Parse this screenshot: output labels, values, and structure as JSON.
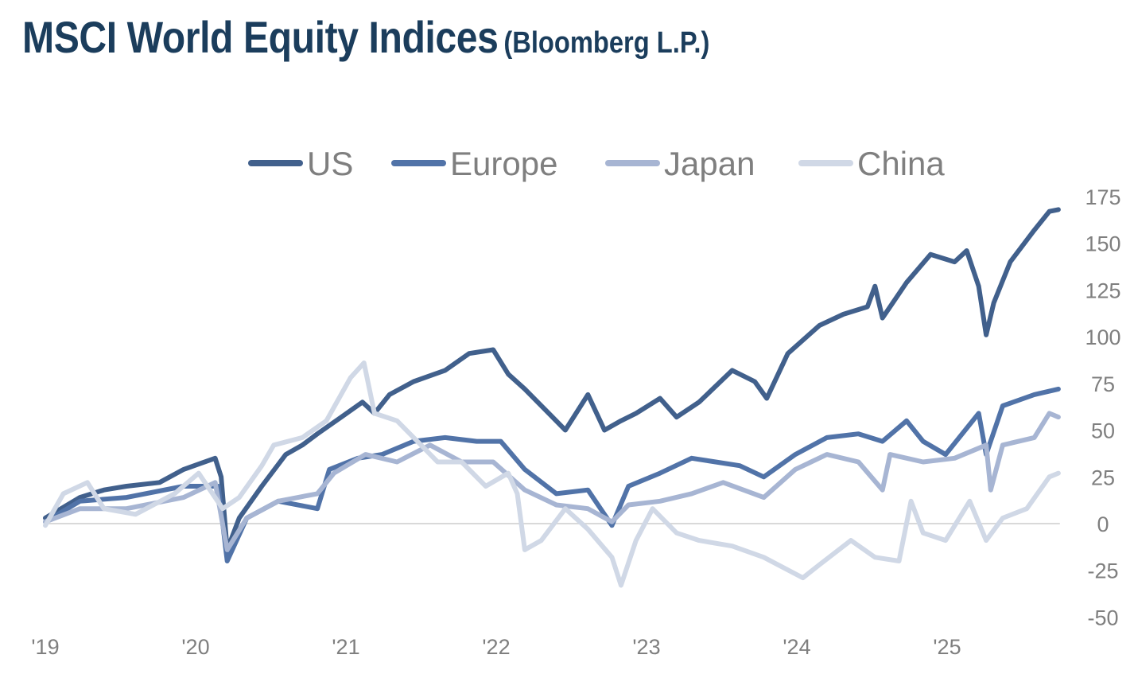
{
  "title": {
    "main": "MSCI World Equity Indices",
    "sub": "(Bloomberg L.P.)"
  },
  "colors": {
    "title": "#1b3d5c",
    "zero_line": "#d9d9d9",
    "text": "#7f7f7f"
  },
  "chart_data": {
    "type": "line",
    "title": "MSCI World Equity Indices (Bloomberg L.P.)",
    "xlabel": "",
    "ylabel": "",
    "xlim": [
      2019,
      2025.75
    ],
    "ylim": [
      -50,
      175
    ],
    "y_ticks": [
      175,
      150,
      125,
      100,
      75,
      50,
      25,
      0,
      -25,
      -50
    ],
    "y_tick_labels": [
      "175",
      "150",
      "125",
      "100",
      "75",
      "50",
      "25",
      "0",
      "-25",
      "-50"
    ],
    "y_axis_side": "right",
    "x_ticks": [
      2019,
      2020,
      2021,
      2022,
      2023,
      2024,
      2025
    ],
    "x_tick_labels": [
      "'19",
      "'20",
      "'21",
      "'22",
      "'23",
      "'24",
      "'25"
    ],
    "grid": false,
    "zero_line": true,
    "legend_position": "top",
    "series": [
      {
        "name": "US",
        "color": "#41608c",
        "points": [
          [
            2019.0,
            3
          ],
          [
            2019.23,
            14
          ],
          [
            2019.39,
            18
          ],
          [
            2019.54,
            20
          ],
          [
            2019.76,
            22
          ],
          [
            2019.92,
            29
          ],
          [
            2020.13,
            35
          ],
          [
            2020.17,
            25
          ],
          [
            2020.21,
            -14
          ],
          [
            2020.29,
            3
          ],
          [
            2020.44,
            20
          ],
          [
            2020.6,
            37
          ],
          [
            2020.71,
            42
          ],
          [
            2020.81,
            48
          ],
          [
            2020.97,
            57
          ],
          [
            2021.11,
            65
          ],
          [
            2021.19,
            59
          ],
          [
            2021.29,
            69
          ],
          [
            2021.45,
            76
          ],
          [
            2021.66,
            82
          ],
          [
            2021.82,
            91
          ],
          [
            2021.98,
            93
          ],
          [
            2022.08,
            80
          ],
          [
            2022.19,
            72
          ],
          [
            2022.35,
            59
          ],
          [
            2022.46,
            50
          ],
          [
            2022.61,
            69
          ],
          [
            2022.72,
            50
          ],
          [
            2022.83,
            55
          ],
          [
            2022.93,
            59
          ],
          [
            2023.09,
            67
          ],
          [
            2023.2,
            57
          ],
          [
            2023.35,
            65
          ],
          [
            2023.57,
            82
          ],
          [
            2023.72,
            76
          ],
          [
            2023.8,
            67
          ],
          [
            2023.94,
            91
          ],
          [
            2024.15,
            106
          ],
          [
            2024.31,
            112
          ],
          [
            2024.47,
            116
          ],
          [
            2024.52,
            127
          ],
          [
            2024.57,
            110
          ],
          [
            2024.73,
            129
          ],
          [
            2024.89,
            144
          ],
          [
            2025.05,
            140
          ],
          [
            2025.13,
            146
          ],
          [
            2025.21,
            127
          ],
          [
            2025.26,
            101
          ],
          [
            2025.31,
            118
          ],
          [
            2025.42,
            140
          ],
          [
            2025.58,
            157
          ],
          [
            2025.68,
            167
          ],
          [
            2025.74,
            168
          ]
        ]
      },
      {
        "name": "Europe",
        "color": "#5173a8",
        "points": [
          [
            2019.0,
            1
          ],
          [
            2019.23,
            12
          ],
          [
            2019.54,
            14
          ],
          [
            2019.92,
            20
          ],
          [
            2020.15,
            20
          ],
          [
            2020.21,
            -20
          ],
          [
            2020.34,
            3
          ],
          [
            2020.55,
            12
          ],
          [
            2020.81,
            8
          ],
          [
            2020.89,
            29
          ],
          [
            2021.08,
            35
          ],
          [
            2021.24,
            37
          ],
          [
            2021.45,
            44
          ],
          [
            2021.66,
            46
          ],
          [
            2021.87,
            44
          ],
          [
            2022.03,
            44
          ],
          [
            2022.19,
            29
          ],
          [
            2022.4,
            16
          ],
          [
            2022.61,
            18
          ],
          [
            2022.77,
            -1
          ],
          [
            2022.88,
            20
          ],
          [
            2023.09,
            27
          ],
          [
            2023.3,
            35
          ],
          [
            2023.46,
            33
          ],
          [
            2023.62,
            31
          ],
          [
            2023.78,
            25
          ],
          [
            2023.99,
            37
          ],
          [
            2024.2,
            46
          ],
          [
            2024.41,
            48
          ],
          [
            2024.57,
            44
          ],
          [
            2024.73,
            55
          ],
          [
            2024.84,
            44
          ],
          [
            2024.99,
            37
          ],
          [
            2025.21,
            59
          ],
          [
            2025.26,
            37
          ],
          [
            2025.37,
            63
          ],
          [
            2025.58,
            69
          ],
          [
            2025.74,
            72
          ]
        ]
      },
      {
        "name": "Japan",
        "color": "#a7b5d3",
        "points": [
          [
            2019.0,
            1
          ],
          [
            2019.23,
            8
          ],
          [
            2019.54,
            8
          ],
          [
            2019.92,
            14
          ],
          [
            2020.13,
            22
          ],
          [
            2020.21,
            -14
          ],
          [
            2020.34,
            3
          ],
          [
            2020.55,
            12
          ],
          [
            2020.81,
            16
          ],
          [
            2020.92,
            27
          ],
          [
            2021.13,
            37
          ],
          [
            2021.34,
            33
          ],
          [
            2021.56,
            42
          ],
          [
            2021.77,
            33
          ],
          [
            2021.98,
            33
          ],
          [
            2022.19,
            18
          ],
          [
            2022.4,
            10
          ],
          [
            2022.61,
            8
          ],
          [
            2022.77,
            1
          ],
          [
            2022.88,
            10
          ],
          [
            2023.09,
            12
          ],
          [
            2023.3,
            16
          ],
          [
            2023.51,
            22
          ],
          [
            2023.78,
            14
          ],
          [
            2023.99,
            29
          ],
          [
            2024.2,
            37
          ],
          [
            2024.41,
            33
          ],
          [
            2024.57,
            18
          ],
          [
            2024.62,
            37
          ],
          [
            2024.84,
            33
          ],
          [
            2025.05,
            35
          ],
          [
            2025.26,
            42
          ],
          [
            2025.29,
            18
          ],
          [
            2025.37,
            42
          ],
          [
            2025.58,
            46
          ],
          [
            2025.68,
            59
          ],
          [
            2025.74,
            57
          ]
        ]
      },
      {
        "name": "China",
        "color": "#d0d8e6",
        "points": [
          [
            2019.0,
            -1
          ],
          [
            2019.12,
            16
          ],
          [
            2019.28,
            22
          ],
          [
            2019.39,
            8
          ],
          [
            2019.6,
            5
          ],
          [
            2019.86,
            16
          ],
          [
            2020.02,
            27
          ],
          [
            2020.18,
            8
          ],
          [
            2020.29,
            14
          ],
          [
            2020.44,
            31
          ],
          [
            2020.52,
            42
          ],
          [
            2020.71,
            46
          ],
          [
            2020.87,
            55
          ],
          [
            2021.03,
            78
          ],
          [
            2021.12,
            86
          ],
          [
            2021.19,
            59
          ],
          [
            2021.34,
            55
          ],
          [
            2021.5,
            42
          ],
          [
            2021.61,
            33
          ],
          [
            2021.77,
            33
          ],
          [
            2021.93,
            20
          ],
          [
            2022.08,
            27
          ],
          [
            2022.14,
            16
          ],
          [
            2022.19,
            -14
          ],
          [
            2022.3,
            -9
          ],
          [
            2022.46,
            8
          ],
          [
            2022.61,
            -3
          ],
          [
            2022.77,
            -18
          ],
          [
            2022.83,
            -33
          ],
          [
            2022.93,
            -9
          ],
          [
            2023.04,
            8
          ],
          [
            2023.2,
            -5
          ],
          [
            2023.35,
            -9
          ],
          [
            2023.57,
            -12
          ],
          [
            2023.78,
            -18
          ],
          [
            2024.04,
            -29
          ],
          [
            2024.15,
            -22
          ],
          [
            2024.36,
            -9
          ],
          [
            2024.52,
            -18
          ],
          [
            2024.68,
            -20
          ],
          [
            2024.76,
            12
          ],
          [
            2024.84,
            -5
          ],
          [
            2024.99,
            -9
          ],
          [
            2025.15,
            12
          ],
          [
            2025.26,
            -9
          ],
          [
            2025.37,
            3
          ],
          [
            2025.53,
            8
          ],
          [
            2025.68,
            25
          ],
          [
            2025.74,
            27
          ]
        ]
      }
    ]
  }
}
